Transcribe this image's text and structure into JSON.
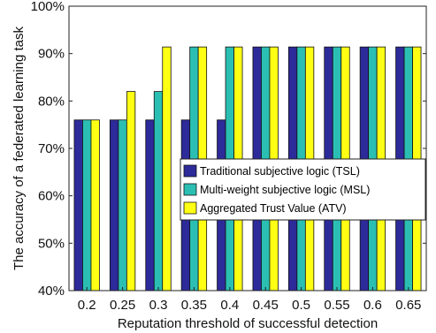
{
  "chart_data": {
    "type": "bar",
    "xlabel": "Reputation threshold of successful detection",
    "ylabel": "The accuracy of a federated learning task",
    "categories": [
      "0.2",
      "0.25",
      "0.3",
      "0.35",
      "0.4",
      "0.45",
      "0.5",
      "0.55",
      "0.6",
      "0.65"
    ],
    "ylim": [
      40,
      100
    ],
    "yticks": [
      40,
      50,
      60,
      70,
      80,
      90,
      100
    ],
    "ytick_labels": [
      "40%",
      "50%",
      "60%",
      "70%",
      "80%",
      "90%",
      "100%"
    ],
    "grid": false,
    "legend_position": "center-right",
    "series": [
      {
        "name": "Traditional subjective logic (TSL)",
        "color": "#2d2a9a",
        "values": [
          76,
          76,
          76,
          76,
          76,
          91.4,
          91.4,
          91.4,
          91.4,
          91.4
        ]
      },
      {
        "name": "Multi-weight subjective logic (MSL)",
        "color": "#2bbfb3",
        "values": [
          76,
          76,
          82,
          91.4,
          91.4,
          91.4,
          91.4,
          91.4,
          91.4,
          91.4
        ]
      },
      {
        "name": "Aggregated Trust Value (ATV)",
        "color": "#ffff14",
        "values": [
          76,
          82,
          91.4,
          91.4,
          91.4,
          91.4,
          91.4,
          91.4,
          91.4,
          91.4
        ]
      }
    ]
  }
}
